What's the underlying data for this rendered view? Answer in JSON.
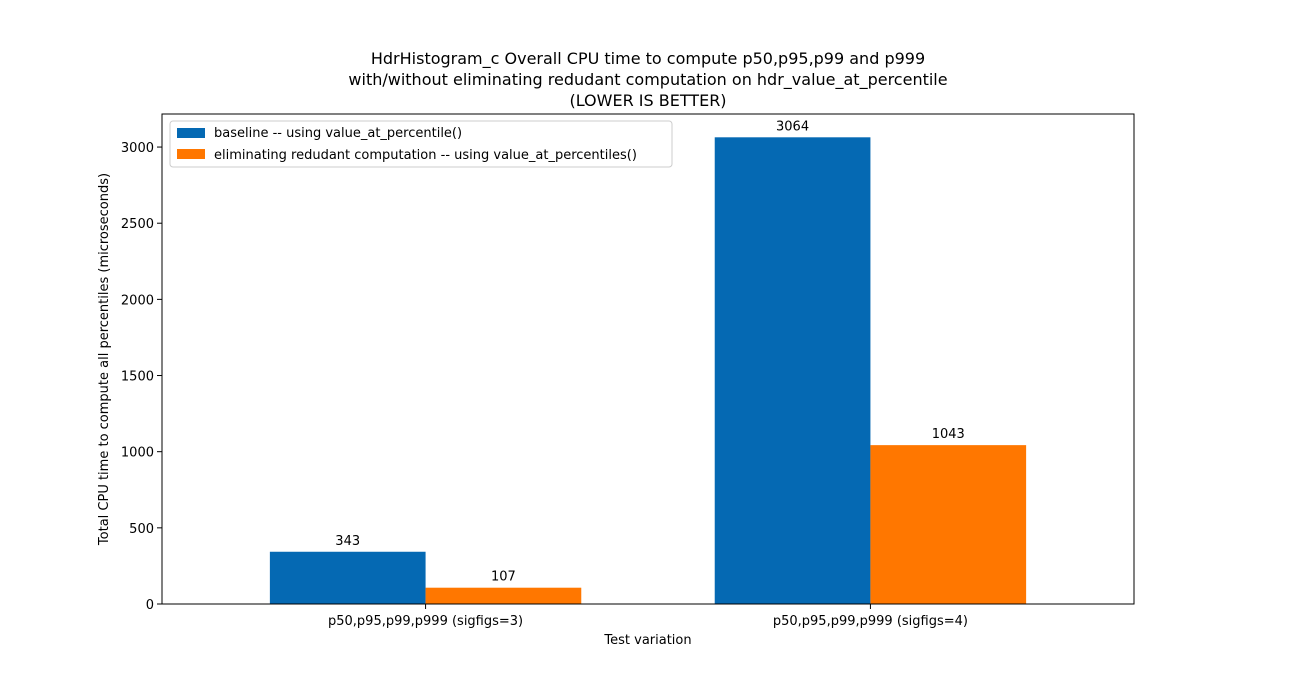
{
  "chart_data": {
    "type": "bar",
    "title_lines": [
      "HdrHistogram_c Overall CPU time to compute p50,p95,p99 and p999",
      "with/without eliminating redudant computation on hdr_value_at_percentile",
      "(LOWER IS BETTER)"
    ],
    "xlabel": "Test variation",
    "ylabel": "Total CPU time to compute all percentiles (microseconds)",
    "categories": [
      "p50,p95,p99,p999 (sigfigs=3)",
      "p50,p95,p99,p999 (sigfigs=4)"
    ],
    "series": [
      {
        "name": "baseline -- using value_at_percentile()",
        "values": [
          343,
          3064
        ],
        "color": "#0569b3"
      },
      {
        "name": "eliminating redudant computation -- using value_at_percentiles()",
        "values": [
          107,
          1043
        ],
        "color": "#ff7700"
      }
    ],
    "ylim": [
      0,
      3217
    ],
    "yticks": [
      0,
      500,
      1000,
      1500,
      2000,
      2500,
      3000
    ],
    "legend_position": "upper-left",
    "grid": false
  }
}
